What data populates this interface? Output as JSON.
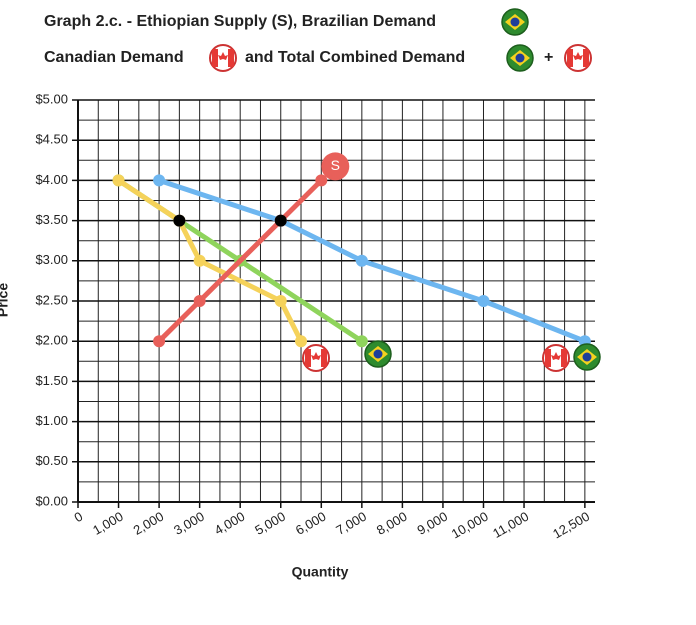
{
  "chart_data": {
    "type": "line",
    "title": "Graph 2.c. - Ethiopian Supply (S), Brazilian Demand",
    "subtitle": [
      "Canadian Demand",
      "and Total Combined Demand",
      "+"
    ],
    "x_label": "Quantity",
    "y_label": "Price",
    "xlim": [
      0,
      12750
    ],
    "xticks": [
      0,
      {
        "value": 1000,
        "label": "1,000"
      },
      {
        "value": 2000,
        "label": "2,000"
      },
      {
        "value": 3000,
        "label": "3,000"
      },
      {
        "value": 4000,
        "label": "4,000"
      },
      {
        "value": 5000,
        "label": "5,000"
      },
      {
        "value": 6000,
        "label": "6,000"
      },
      {
        "value": 7000,
        "label": "7,000"
      },
      {
        "value": 8000,
        "label": "8,000"
      },
      {
        "value": 9000,
        "label": "9,000"
      },
      {
        "value": 10000,
        "label": "10,000"
      },
      {
        "value": 11000,
        "label": "11,000"
      },
      {
        "value": 12500,
        "label": "12,500"
      }
    ],
    "ylim": [
      0,
      5
    ],
    "yticks": [
      {
        "value": 0,
        "label": "$0.00"
      },
      {
        "value": 0.5,
        "label": "$0.50"
      },
      {
        "value": 1,
        "label": "$1.00"
      },
      {
        "value": 1.5,
        "label": "$1.50"
      },
      {
        "value": 2,
        "label": "$2.00"
      },
      {
        "value": 2.5,
        "label": "$2.50"
      },
      {
        "value": 3,
        "label": "$3.00"
      },
      {
        "value": 3.5,
        "label": "$3.50"
      },
      {
        "value": 4,
        "label": "$4.00"
      },
      {
        "value": 4.5,
        "label": "$4.50"
      },
      {
        "value": 5,
        "label": "$5.00"
      }
    ],
    "grid": true,
    "series": [
      {
        "color": "#6db6f0",
        "x": [
          2000,
          5000,
          7000,
          10000,
          12500
        ],
        "values": [
          4.0,
          3.5,
          3.0,
          2.5,
          2.0
        ]
      },
      {
        "color": "#8fd45c",
        "x": [
          1000,
          4000,
          7000
        ],
        "values": [
          4.0,
          3.0,
          2.0
        ]
      },
      {
        "color": "#f5d25a",
        "x": [
          1000,
          2500,
          3000,
          5000,
          5500
        ],
        "values": [
          4.0,
          3.5,
          3.0,
          2.5,
          2.0
        ]
      },
      {
        "name": "S",
        "color": "#e8605a",
        "x": [
          2000,
          3000,
          5000,
          6000
        ],
        "values": [
          2.0,
          2.5,
          3.5,
          4.0
        ]
      },
      {
        "color": "#000000",
        "x": [
          2500,
          5000
        ],
        "values": [
          3.5,
          3.5
        ]
      }
    ]
  }
}
